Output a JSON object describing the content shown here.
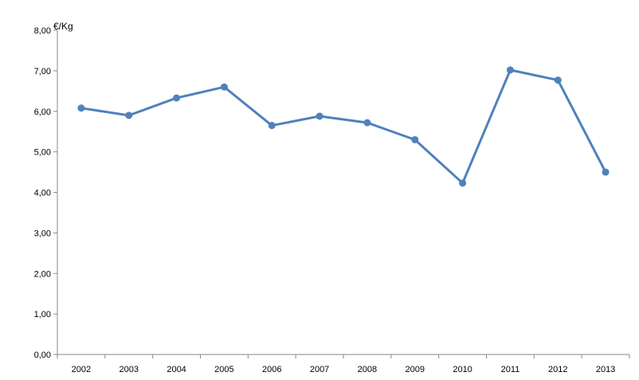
{
  "chart_data": {
    "type": "line",
    "title": "",
    "unit_label": "€/Kg",
    "x": [
      "2002",
      "2003",
      "2004",
      "2005",
      "2006",
      "2007",
      "2008",
      "2009",
      "2010",
      "2011",
      "2012",
      "2013"
    ],
    "series": [
      {
        "values": [
          6.08,
          5.9,
          6.33,
          6.6,
          5.65,
          5.88,
          5.72,
          5.3,
          4.23,
          7.02,
          6.77,
          4.5
        ]
      }
    ],
    "y_ticks": [
      "0,00",
      "1,00",
      "2,00",
      "3,00",
      "4,00",
      "5,00",
      "6,00",
      "7,00",
      "8,00"
    ],
    "ylim": [
      0,
      8
    ],
    "grid": false,
    "legend": "none",
    "colors": {
      "series": "#4F81BD",
      "axis": "#888888"
    }
  }
}
